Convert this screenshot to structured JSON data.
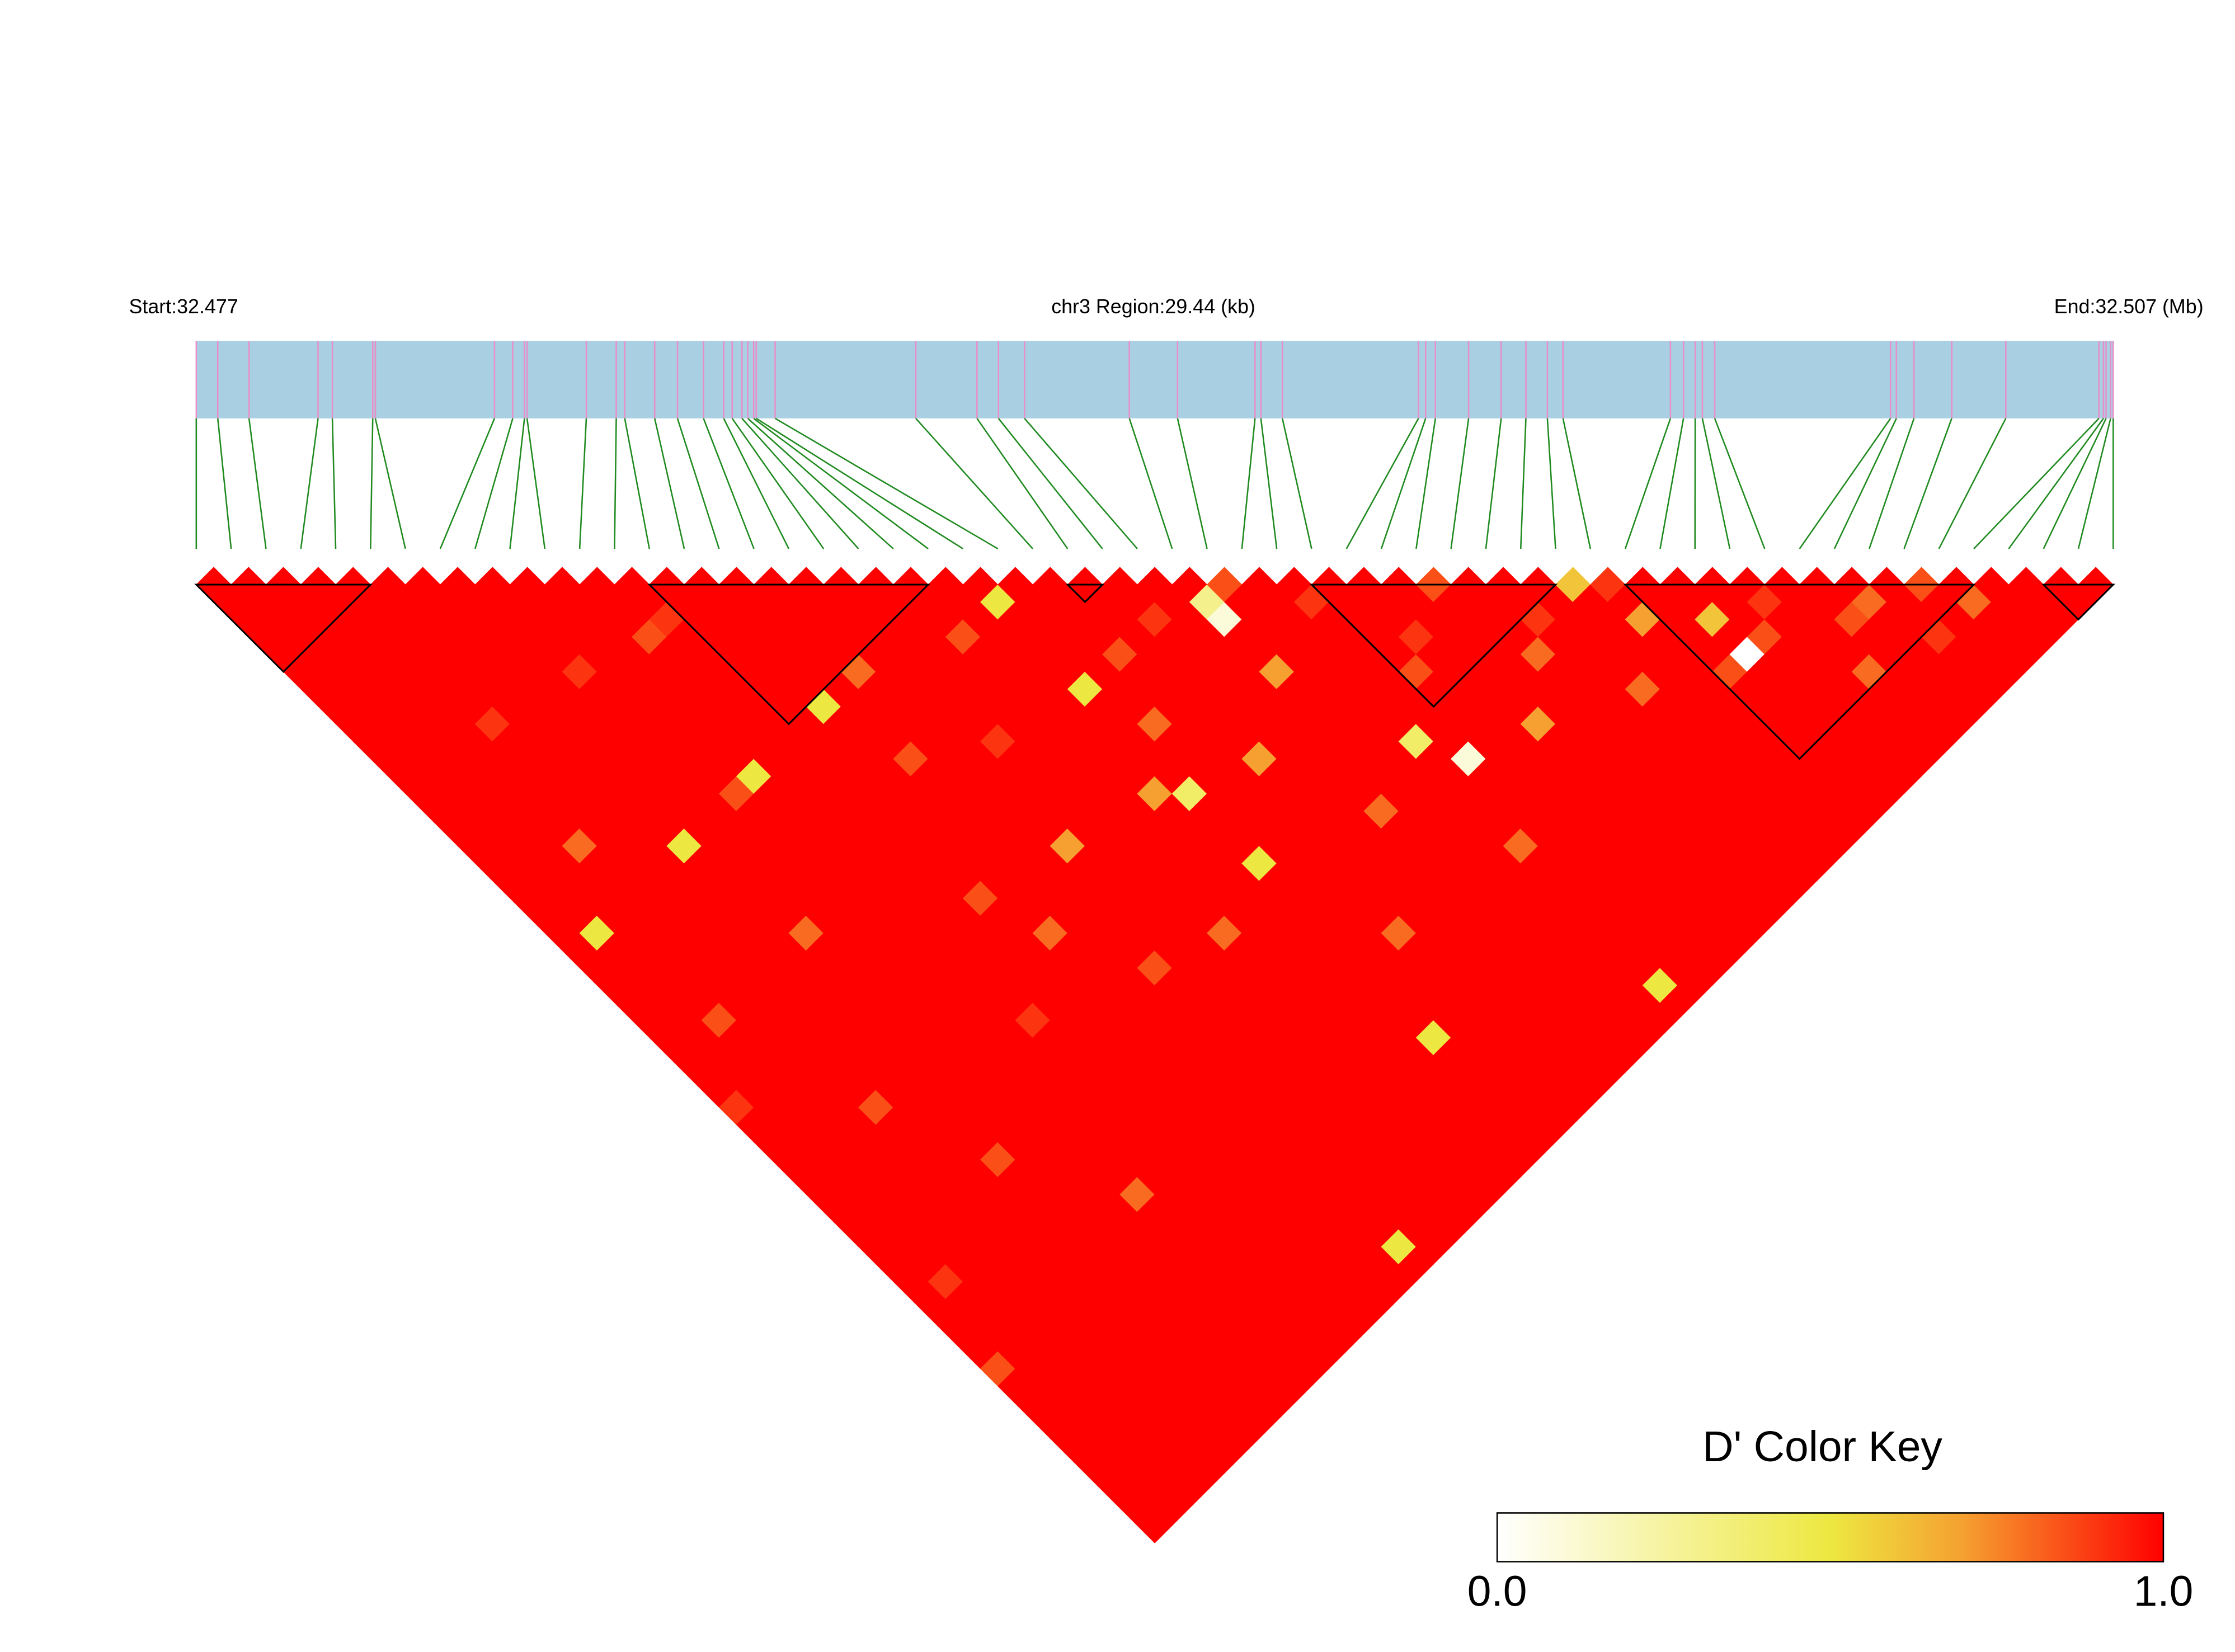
{
  "chart_data": {
    "type": "ld_heatmap",
    "start_label": "Start:32.477",
    "region_label": "chr3 Region:29.44 (kb)",
    "end_label": "End:32.507 (Mb)",
    "xlim": [
      0,
      29.44
    ],
    "positions_kb": [
      0,
      0.33,
      0.81,
      1.87,
      2.09,
      2.71,
      2.75,
      4.58,
      4.86,
      5.04,
      5.08,
      5.99,
      6.45,
      6.58,
      7.04,
      7.39,
      7.79,
      8.1,
      8.23,
      8.38,
      8.47,
      8.56,
      8.6,
      8.89,
      11.05,
      11.99,
      12.32,
      12.72,
      14.33,
      15.07,
      16.26,
      16.35,
      16.68,
      18.77,
      18.88,
      19.03,
      19.54,
      20.04,
      20.42,
      20.75,
      20.99,
      22.64,
      22.84,
      23.02,
      23.13,
      23.32,
      26.02,
      26.11,
      26.38,
      26.96,
      27.79,
      29.22,
      29.29,
      29.33,
      29.4,
      29.44
    ],
    "bar_color": "#a9cfe3",
    "tick_color": "#e88fc8",
    "link_color": "#1f8a1f",
    "block_color": "#000000",
    "blocks": [
      [
        0,
        5
      ],
      [
        13,
        21
      ],
      [
        25,
        26
      ],
      [
        32,
        39
      ],
      [
        41,
        51
      ],
      [
        53,
        55
      ]
    ],
    "dprime": [
      [
        1,
        1,
        1,
        1,
        1,
        1,
        1,
        1,
        1,
        1,
        1,
        1,
        1,
        1,
        1,
        1,
        1,
        1,
        1,
        1,
        1,
        1,
        1,
        1,
        1,
        1,
        1,
        1,
        1,
        1,
        0.9,
        1,
        1,
        1,
        1,
        1,
        1,
        1,
        1,
        1,
        1,
        1,
        1,
        1,
        1,
        0.85,
        1,
        1,
        1,
        1,
        1,
        1,
        1,
        1,
        1
      ],
      [
        1,
        1,
        1,
        1,
        1,
        1,
        1,
        1,
        1,
        1,
        1,
        1,
        1,
        1,
        1,
        1,
        1,
        1,
        1,
        1,
        0.5,
        1,
        1,
        1,
        1,
        1,
        1,
        1,
        1,
        1,
        1,
        1,
        1,
        1,
        1,
        1,
        1,
        1,
        1,
        1,
        0.9,
        1,
        1,
        1,
        1,
        1,
        1,
        1,
        1,
        1,
        1,
        1,
        1,
        1
      ],
      [
        1,
        1,
        1,
        1,
        1,
        1,
        1,
        1,
        1,
        1,
        1,
        1,
        1,
        1,
        1,
        1,
        1,
        1,
        1,
        1,
        1,
        1,
        1,
        1,
        1,
        0.85,
        1,
        1,
        1,
        1,
        1,
        1,
        1,
        1,
        1,
        1,
        1,
        1,
        1,
        1,
        1,
        1,
        1,
        1,
        1,
        1,
        1,
        1,
        1,
        1,
        1,
        1,
        1
      ],
      [
        1,
        1,
        1,
        1,
        1,
        1,
        1,
        1,
        1,
        1,
        1,
        1,
        1,
        1,
        1,
        0.8,
        1,
        1,
        1,
        1,
        1,
        1,
        1,
        1,
        1,
        1,
        1,
        1,
        1,
        1,
        1,
        1,
        1,
        1,
        1,
        1,
        1,
        1,
        1,
        1,
        1,
        1,
        1,
        1,
        1,
        1,
        1,
        1,
        1,
        1,
        1,
        1
      ],
      [
        1,
        1,
        1,
        1,
        1,
        1,
        1,
        1,
        0.9,
        1,
        1,
        1,
        1,
        1,
        1,
        1,
        1,
        1,
        1,
        1,
        1,
        1,
        1,
        1,
        1,
        1,
        1,
        1,
        1,
        1,
        0.85,
        1,
        1,
        1,
        1,
        1,
        1,
        1,
        1,
        1,
        1,
        1,
        1,
        1,
        1,
        1,
        1,
        1,
        1,
        1,
        1
      ],
      [
        1,
        1,
        1,
        1,
        1,
        1,
        1,
        1,
        1,
        1,
        1,
        1,
        1,
        1,
        1,
        1,
        1,
        1,
        1,
        1,
        1,
        1,
        1,
        1,
        1,
        1,
        1,
        1,
        1,
        1,
        1,
        1,
        1,
        1,
        1,
        1,
        1,
        1,
        1,
        1,
        1,
        1,
        1,
        1,
        1,
        1,
        1,
        1,
        1,
        1
      ],
      [
        1,
        1,
        1,
        1,
        1,
        1,
        1,
        1,
        1,
        1,
        1,
        1,
        1,
        1,
        1,
        0.5,
        1,
        1,
        1,
        1,
        1,
        1,
        1,
        1,
        1,
        1,
        1,
        1,
        1,
        1,
        1,
        1,
        1,
        0.85,
        1,
        1,
        1,
        1,
        1,
        1,
        1,
        1,
        1,
        1,
        1,
        1,
        1,
        1,
        1
      ],
      [
        1,
        1,
        1,
        1,
        1,
        1,
        1,
        1,
        1,
        1,
        1,
        1,
        1,
        1,
        1,
        1,
        1,
        1,
        1,
        1,
        0.8,
        1,
        1,
        1,
        1,
        1,
        1,
        1,
        1,
        1,
        1,
        1,
        1,
        1,
        1,
        1,
        1,
        1,
        1,
        1,
        1,
        1,
        1,
        1,
        1,
        1,
        1,
        1
      ],
      [
        1,
        1,
        1,
        1,
        1,
        0.9,
        1,
        1,
        1,
        1,
        1,
        1,
        1,
        1,
        1,
        1,
        1,
        1,
        1,
        1,
        1,
        1,
        1,
        1,
        1,
        1,
        1,
        1,
        1,
        1,
        1,
        1,
        1,
        1,
        1,
        1,
        1,
        1,
        1,
        1,
        1,
        1,
        1,
        1,
        1,
        1,
        1
      ],
      [
        1,
        1,
        1,
        1,
        1,
        1,
        1,
        1,
        1,
        1,
        1,
        1,
        0.85,
        1,
        1,
        1,
        1,
        1,
        1,
        1,
        1,
        1,
        1,
        1,
        1,
        1,
        1,
        1,
        1,
        1,
        1,
        1,
        1,
        1,
        1,
        0.8,
        1,
        1,
        1,
        1,
        1,
        1,
        1,
        1,
        1,
        1
      ],
      [
        1,
        1,
        1,
        1,
        1,
        1,
        1,
        1,
        1,
        1,
        1,
        0.5,
        1,
        1,
        1,
        1,
        1,
        1,
        1,
        1,
        1,
        1,
        1,
        1,
        1,
        1,
        1,
        1,
        1,
        1,
        1,
        1,
        1,
        1,
        1,
        1,
        1,
        1,
        1,
        1,
        1,
        1,
        1,
        1,
        1
      ],
      [
        1,
        1,
        1,
        0.85,
        1,
        1,
        1,
        1,
        1,
        1,
        1,
        1,
        1,
        1,
        1,
        1,
        1,
        1,
        1,
        1,
        1,
        1,
        1,
        1,
        1,
        0.9,
        1,
        1,
        1,
        1,
        1,
        1,
        1,
        1,
        1,
        1,
        1,
        1,
        1,
        1,
        1,
        1,
        1,
        1
      ],
      [
        1,
        1,
        0.9,
        1,
        1,
        1,
        1,
        1,
        1,
        1,
        1,
        1,
        1,
        1,
        1,
        1,
        1,
        1,
        1,
        1,
        1,
        1,
        1,
        1,
        1,
        1,
        1,
        1,
        1,
        1,
        1,
        1,
        1,
        1,
        1,
        1,
        1,
        1,
        1,
        1,
        1,
        1,
        1
      ],
      [
        1,
        1,
        1,
        1,
        1,
        1,
        1,
        1,
        1,
        1,
        1,
        1,
        1,
        1,
        1,
        1,
        1,
        1,
        0.85,
        1,
        1,
        1,
        1,
        1,
        1,
        1,
        1,
        1,
        1,
        1,
        1,
        1,
        1,
        1,
        1,
        1,
        1,
        1,
        1,
        1,
        1,
        1
      ],
      [
        1,
        1,
        1,
        1,
        1,
        1,
        1,
        0.5,
        1,
        1,
        1,
        1,
        1,
        1,
        1,
        1,
        1,
        1,
        1,
        1,
        0.8,
        1,
        1,
        1,
        1,
        1,
        1,
        1,
        1,
        1,
        1,
        1,
        1,
        1,
        1,
        1,
        1,
        1,
        1,
        1,
        1
      ],
      [
        1,
        1,
        1,
        1,
        1,
        1,
        1,
        1,
        1,
        1,
        0.85,
        1,
        1,
        1,
        1,
        1,
        1,
        1,
        1,
        1,
        1,
        1,
        1,
        1,
        1,
        1,
        1,
        1,
        1,
        1,
        1,
        1,
        1,
        1,
        1,
        1,
        1,
        1,
        0.5,
        1
      ],
      [
        1,
        1,
        1,
        1,
        1,
        0.8,
        1,
        1,
        1,
        1,
        1,
        1,
        1,
        1,
        1,
        1,
        1,
        1,
        1,
        1,
        1,
        1,
        0.85,
        1,
        1,
        1,
        1,
        1,
        1,
        1,
        1,
        1,
        1,
        1,
        1,
        1,
        1,
        1,
        1
      ],
      [
        1,
        1,
        1,
        1,
        1,
        1,
        1,
        1,
        1,
        1,
        1,
        1,
        1,
        1,
        1,
        0.7,
        1,
        1,
        1,
        1,
        1,
        1,
        1,
        1,
        1,
        1,
        1,
        1,
        1,
        1,
        1,
        1,
        1,
        1,
        1,
        1,
        1,
        1
      ],
      [
        1,
        1,
        1,
        1,
        1,
        1,
        1,
        1,
        1,
        0.9,
        1,
        1,
        1,
        1,
        1,
        1,
        1,
        1,
        1,
        1,
        1,
        1,
        1,
        1,
        1,
        1,
        1,
        1,
        1,
        1,
        1,
        1,
        1,
        1,
        1,
        1,
        1
      ],
      [
        1,
        1,
        1,
        1,
        1,
        1,
        1,
        1,
        1,
        1,
        1,
        1,
        1,
        1,
        1,
        1,
        1,
        1,
        1,
        1,
        0.8,
        1,
        1,
        1,
        1,
        1,
        1,
        1,
        1,
        1,
        1,
        1,
        1,
        1,
        1,
        1
      ],
      [
        1,
        1,
        1,
        0.85,
        1,
        1,
        1,
        1,
        1,
        1,
        1,
        1,
        1,
        1,
        1,
        1,
        1,
        1,
        1,
        1,
        1,
        1,
        1,
        1,
        1,
        1,
        1,
        1,
        1,
        1,
        1,
        1,
        1,
        1,
        1
      ],
      [
        1,
        1,
        1,
        1,
        1,
        1,
        1,
        1,
        1,
        1,
        1,
        1,
        0.7,
        1,
        1,
        1,
        1,
        1,
        1,
        1,
        1,
        1,
        1,
        1,
        1,
        1,
        1,
        1,
        1,
        1,
        1,
        1,
        1,
        1
      ],
      [
        1,
        0.5,
        1,
        1,
        1,
        1,
        0.5,
        1,
        1,
        1,
        1,
        1,
        0.4,
        1,
        1,
        1,
        0.5,
        1,
        1,
        1,
        1,
        1,
        1,
        1,
        1,
        1,
        0.5,
        1,
        1,
        1,
        1,
        1,
        1
      ],
      [
        1,
        1,
        1,
        1,
        1,
        1,
        1,
        1,
        0.8,
        1,
        1,
        1,
        1,
        1,
        1,
        1,
        1,
        1,
        1,
        1,
        1,
        1,
        1,
        1,
        1,
        1,
        1,
        1,
        1,
        1,
        1,
        1
      ],
      [
        1,
        1,
        1,
        1,
        0.85,
        1,
        1,
        1,
        1,
        1,
        1,
        1,
        1,
        1,
        1,
        1,
        1,
        1,
        1,
        1,
        0.8,
        1,
        1,
        1,
        1,
        1,
        1,
        1,
        1,
        1,
        1
      ],
      [
        1,
        1,
        1,
        1,
        1,
        1,
        1,
        1,
        1,
        1,
        0.7,
        1,
        1,
        1,
        1,
        1,
        1,
        1,
        1,
        1,
        1,
        1,
        1,
        1,
        1,
        1,
        1,
        1,
        1,
        1
      ],
      [
        1,
        1,
        0.9,
        1,
        1,
        1,
        1,
        1,
        1,
        1,
        1,
        1,
        1,
        1,
        1,
        1,
        1,
        1,
        1,
        1,
        1,
        1,
        1,
        1,
        1,
        1,
        1,
        1,
        1
      ],
      [
        1,
        1,
        1,
        1,
        1,
        1,
        1,
        1,
        1,
        1,
        1,
        1,
        1,
        0.8,
        1,
        1,
        1,
        1,
        1,
        1,
        1,
        1,
        1,
        1,
        1,
        1,
        1,
        1
      ],
      [
        1,
        0.3,
        0.1,
        1,
        1,
        0.7,
        1,
        1,
        1,
        1,
        1,
        1,
        1,
        1,
        1,
        1,
        1,
        1,
        1,
        1,
        1,
        1,
        1,
        1,
        1,
        1,
        1
      ],
      [
        0.85,
        1,
        1,
        1,
        1,
        1,
        1,
        1,
        1,
        1,
        1,
        1,
        1,
        1,
        1,
        1,
        1,
        1,
        1,
        1,
        1,
        1,
        1,
        1,
        1,
        1
      ],
      [
        1,
        1,
        1,
        1,
        1,
        1,
        1,
        1,
        1,
        0.4,
        1,
        1,
        1,
        1,
        1,
        0.8,
        1,
        1,
        1,
        1,
        1,
        1,
        1,
        0.5,
        1
      ],
      [
        1,
        0.9,
        1,
        1,
        1,
        1,
        1,
        1,
        1,
        1,
        0.1,
        1,
        1,
        1,
        1,
        1,
        1,
        1,
        1,
        1,
        1,
        1,
        1,
        1
      ],
      [
        1,
        1,
        1,
        1,
        1,
        0.85,
        1,
        1,
        1,
        1,
        1,
        1,
        1,
        1,
        1,
        1,
        1,
        1,
        1,
        1,
        1,
        1,
        1
      ],
      [
        1,
        1,
        1,
        0.9,
        1,
        1,
        1,
        1,
        1,
        1,
        1,
        1,
        1,
        1,
        1,
        1,
        1,
        1,
        1,
        1,
        1,
        1
      ],
      [
        1,
        1,
        1,
        1,
        1,
        1,
        1,
        1,
        0.7,
        1,
        1,
        1,
        1,
        1,
        1,
        1,
        1,
        1,
        1,
        1,
        1
      ],
      [
        0.85,
        1,
        1,
        1,
        1,
        1,
        1,
        1,
        1,
        1,
        1,
        1,
        1,
        1,
        1,
        1,
        1,
        1,
        1,
        1
      ],
      [
        1,
        1,
        1,
        1,
        0.8,
        1,
        1,
        1,
        1,
        1,
        1,
        1,
        1,
        1,
        1,
        1,
        1,
        1,
        1
      ],
      [
        1,
        1,
        0.9,
        1,
        1,
        1,
        1,
        1,
        1,
        1,
        1,
        1,
        1,
        1,
        1,
        1,
        1,
        1
      ],
      [
        1,
        1,
        1,
        1,
        1,
        1,
        0.8,
        1,
        1,
        1,
        1,
        1,
        1,
        1,
        1,
        1,
        1
      ],
      [
        0.6,
        1,
        1,
        1,
        1,
        1,
        1,
        1,
        1,
        1,
        1,
        1,
        1,
        1,
        1,
        1
      ],
      [
        0.9,
        1,
        0.7,
        1,
        1,
        1,
        1,
        1,
        1,
        1,
        1,
        1,
        1,
        1,
        1
      ],
      [
        1,
        1,
        1,
        1,
        1,
        0.85,
        1,
        1,
        1,
        1,
        1,
        1,
        1,
        1
      ],
      [
        1,
        1,
        0.6,
        1,
        0,
        1,
        1,
        1,
        1,
        1,
        1,
        1,
        1
      ],
      [
        1,
        1,
        1,
        0.85,
        1,
        1,
        1,
        1,
        1,
        1,
        1,
        1
      ],
      [
        1,
        0.9,
        1,
        1,
        1,
        1,
        1,
        1,
        1,
        1,
        1
      ],
      [
        1,
        1,
        1,
        1,
        1,
        0.8,
        1,
        1,
        1,
        1
      ],
      [
        1,
        1,
        0.85,
        1,
        1,
        1,
        1,
        1,
        1
      ],
      [
        1,
        0.8,
        1,
        1,
        1,
        1,
        1,
        1
      ],
      [
        1,
        1,
        1,
        0.9,
        1,
        1,
        1
      ],
      [
        0.85,
        1,
        1,
        1,
        1,
        1
      ],
      [
        1,
        0.8,
        1,
        1,
        1
      ],
      [
        1,
        1,
        1,
        1
      ],
      [
        1,
        1,
        1
      ],
      [
        1,
        1
      ],
      [
        1
      ]
    ],
    "color_stops": [
      {
        "value": 0,
        "color": "#ffffff"
      },
      {
        "value": 0.5,
        "color": "#ede841"
      },
      {
        "value": 0.7,
        "color": "#f5a030"
      },
      {
        "value": 1,
        "color": "#ff0000"
      }
    ],
    "colorbar": {
      "title": "D' Color Key",
      "ticks": [
        {
          "value": 0,
          "label": "0.0"
        },
        {
          "value": 1,
          "label": "1.0"
        }
      ]
    }
  }
}
